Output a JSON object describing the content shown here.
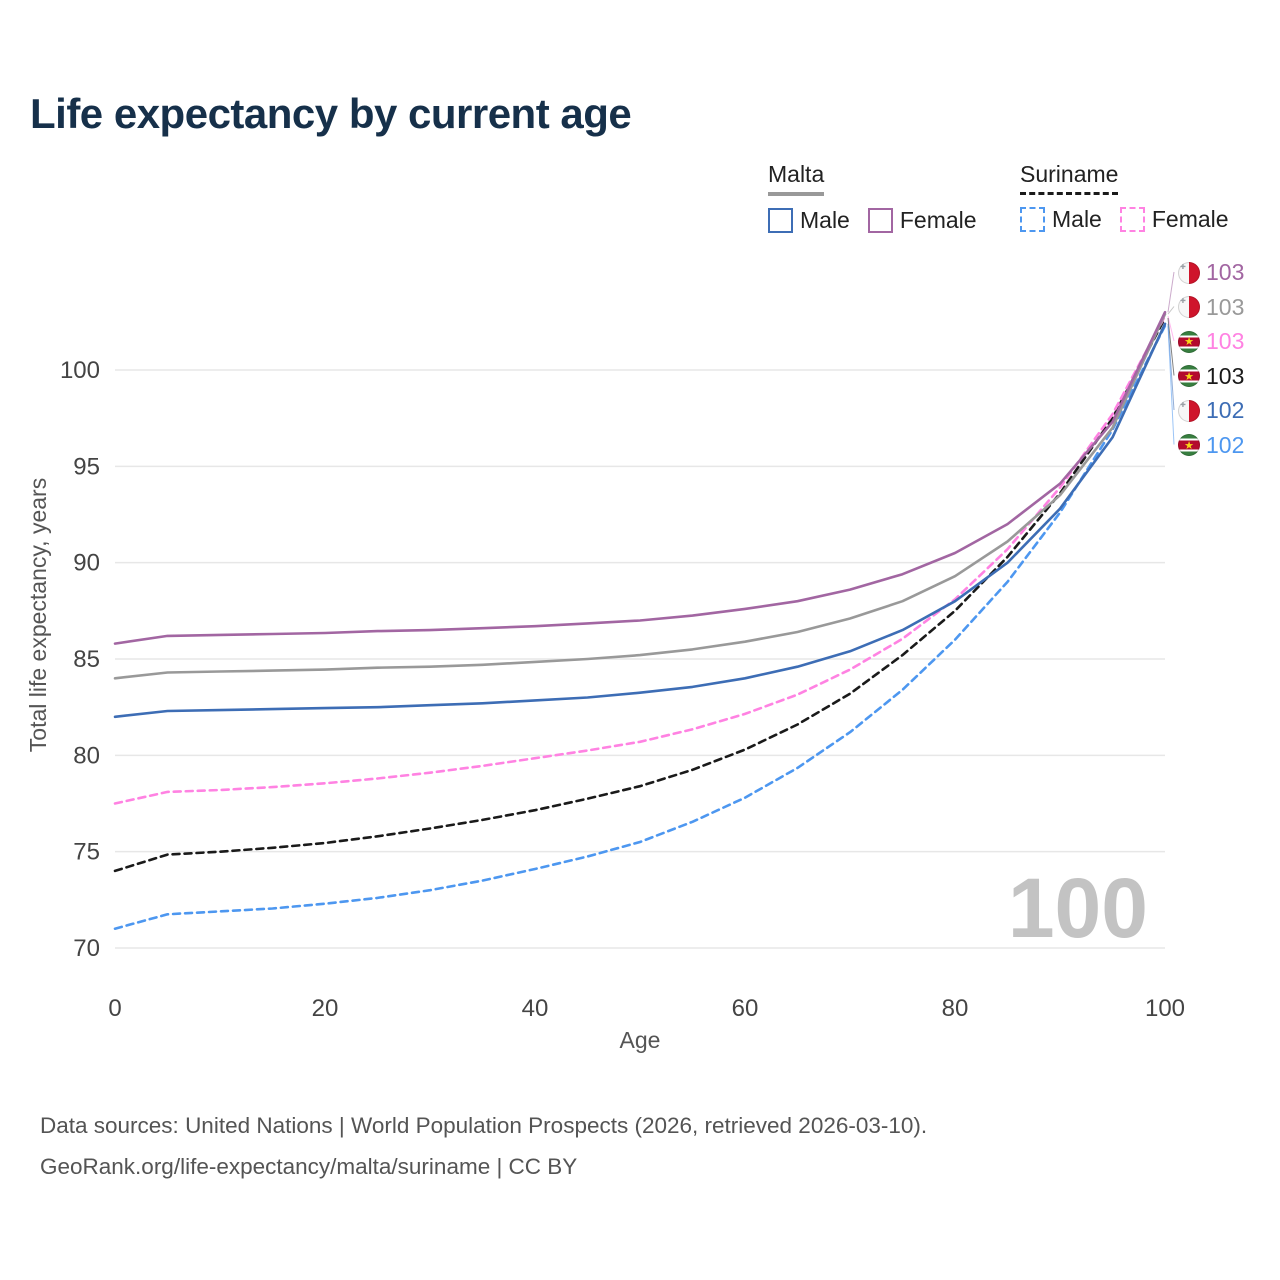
{
  "title": "Life expectancy by current age",
  "legend": {
    "groups": [
      {
        "country": "Malta",
        "style": "solid",
        "items": [
          {
            "label": "Male",
            "series": "malta-male"
          },
          {
            "label": "Female",
            "series": "malta-female"
          }
        ]
      },
      {
        "country": "Suriname",
        "style": "dashed",
        "items": [
          {
            "label": "Male",
            "series": "suriname-male"
          },
          {
            "label": "Female",
            "series": "suriname-female"
          }
        ]
      }
    ]
  },
  "colors": {
    "title": "#16304a",
    "grid": "#e7e7e7",
    "tick_text": "#444444",
    "axis_title_text": "#555555",
    "watermark": "#c3c3c3",
    "malta_male": "#3d6db5",
    "malta_female": "#a266a2",
    "malta_both": "#999999",
    "suriname_male": "#4d97f0",
    "suriname_female": "#ff82e2",
    "suriname_both": "#1a1a1a"
  },
  "chart_data": {
    "type": "line",
    "title": "Life expectancy by current age",
    "xlabel": "Age",
    "ylabel": "Total life expectancy, years",
    "xlim": [
      0,
      100
    ],
    "ylim": [
      70,
      103.5
    ],
    "xticks": [
      0,
      20,
      40,
      60,
      80,
      100
    ],
    "yticks": [
      70,
      75,
      80,
      85,
      90,
      95,
      100
    ],
    "grid": "horizontal",
    "legend_position": "top-right",
    "age_indicator": "100",
    "x": [
      0,
      5,
      10,
      15,
      20,
      25,
      30,
      35,
      40,
      45,
      50,
      55,
      60,
      65,
      70,
      75,
      80,
      85,
      90,
      95,
      100
    ],
    "series": [
      {
        "id": "suriname-male",
        "name": "Suriname Male",
        "country": "Suriname",
        "sex": "Male",
        "style": "dashed",
        "color": "#4d97f0",
        "values": [
          71.0,
          71.75,
          71.9,
          72.05,
          72.3,
          72.6,
          73.0,
          73.5,
          74.1,
          74.75,
          75.5,
          76.55,
          77.8,
          79.35,
          81.2,
          83.4,
          86.0,
          89.0,
          92.6,
          96.9,
          102.3
        ]
      },
      {
        "id": "suriname-both",
        "name": "Suriname (both sexes)",
        "country": "Suriname",
        "sex": "Both",
        "style": "dashed",
        "color": "#1a1a1a",
        "values": [
          74.0,
          74.85,
          75.0,
          75.2,
          75.45,
          75.8,
          76.2,
          76.65,
          77.15,
          77.75,
          78.4,
          79.25,
          80.3,
          81.6,
          83.2,
          85.2,
          87.5,
          90.3,
          93.6,
          97.5,
          102.7
        ]
      },
      {
        "id": "suriname-female",
        "name": "Suriname Female",
        "country": "Suriname",
        "sex": "Female",
        "style": "dashed",
        "color": "#ff82e2",
        "values": [
          77.5,
          78.1,
          78.2,
          78.35,
          78.55,
          78.8,
          79.1,
          79.45,
          79.85,
          80.25,
          80.7,
          81.35,
          82.15,
          83.15,
          84.45,
          86.05,
          88.1,
          90.7,
          93.9,
          97.7,
          102.8
        ]
      },
      {
        "id": "malta-male",
        "name": "Malta Male",
        "country": "Malta",
        "sex": "Male",
        "style": "solid",
        "color": "#3d6db5",
        "values": [
          82.0,
          82.3,
          82.35,
          82.4,
          82.45,
          82.5,
          82.6,
          82.7,
          82.85,
          83.0,
          83.25,
          83.55,
          84.0,
          84.6,
          85.4,
          86.5,
          88.0,
          90.0,
          92.8,
          96.5,
          102.4
        ]
      },
      {
        "id": "malta-both",
        "name": "Malta (both sexes)",
        "country": "Malta",
        "sex": "Both",
        "style": "solid",
        "color": "#999999",
        "values": [
          84.0,
          84.3,
          84.35,
          84.4,
          84.45,
          84.55,
          84.6,
          84.7,
          84.85,
          85.0,
          85.2,
          85.5,
          85.9,
          86.4,
          87.1,
          88.0,
          89.3,
          91.1,
          93.5,
          97.0,
          102.9
        ]
      },
      {
        "id": "malta-female",
        "name": "Malta Female",
        "country": "Malta",
        "sex": "Female",
        "style": "solid",
        "color": "#a266a2",
        "values": [
          85.8,
          86.2,
          86.25,
          86.3,
          86.35,
          86.45,
          86.5,
          86.6,
          86.7,
          86.85,
          87.0,
          87.25,
          87.6,
          88.0,
          88.6,
          89.4,
          90.5,
          92.0,
          94.1,
          97.3,
          103.0
        ]
      }
    ],
    "end_labels": [
      {
        "value": "103",
        "flag": "malta",
        "series": "malta-female",
        "color": "#a266a2"
      },
      {
        "value": "103",
        "flag": "malta",
        "series": "malta-both",
        "color": "#999999"
      },
      {
        "value": "103",
        "flag": "suriname",
        "series": "suriname-female",
        "color": "#ff82e2"
      },
      {
        "value": "103",
        "flag": "suriname",
        "series": "suriname-both",
        "color": "#1a1a1a"
      },
      {
        "value": "102",
        "flag": "malta",
        "series": "malta-male",
        "color": "#3d6db5"
      },
      {
        "value": "102",
        "flag": "suriname",
        "series": "suriname-male",
        "color": "#4d97f0"
      }
    ]
  },
  "footer": {
    "line1": "Data sources: United Nations | World Population Prospects (2026, retrieved 2026-03-10).",
    "line2": "GeoRank.org/life-expectancy/malta/suriname | CC BY"
  }
}
